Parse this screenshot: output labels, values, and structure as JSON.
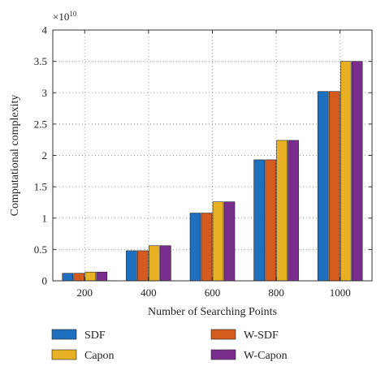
{
  "chart_data": {
    "type": "bar",
    "title": "",
    "xlabel": "Number of Searching Points",
    "ylabel": "Computational complexity",
    "y_exponent_base": "×10",
    "y_exponent_power": "10",
    "categories": [
      "200",
      "400",
      "600",
      "800",
      "1000"
    ],
    "ylim": [
      0,
      4
    ],
    "y_ticks": [
      "0",
      "0.5",
      "1",
      "1.5",
      "2",
      "2.5",
      "3",
      "3.5",
      "4"
    ],
    "grid": true,
    "legend_placement": "bottom",
    "series": [
      {
        "name": "SDF",
        "color": "#1f6fbf",
        "values": [
          0.12,
          0.48,
          1.08,
          1.93,
          3.02
        ]
      },
      {
        "name": "W-SDF",
        "color": "#d45a1e",
        "values": [
          0.12,
          0.48,
          1.08,
          1.93,
          3.02
        ]
      },
      {
        "name": "Capon",
        "color": "#e8b024",
        "values": [
          0.14,
          0.56,
          1.26,
          2.24,
          3.5
        ]
      },
      {
        "name": "W-Capon",
        "color": "#7b2d8e",
        "values": [
          0.14,
          0.56,
          1.26,
          2.24,
          3.5
        ]
      }
    ]
  }
}
